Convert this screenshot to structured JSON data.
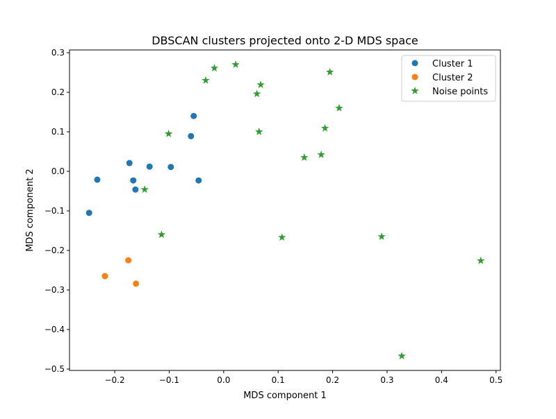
{
  "chart_data": {
    "type": "scatter",
    "title": "DBSCAN clusters projected onto 2-D MDS space",
    "xlabel": "MDS component 1",
    "ylabel": "MDS component 2",
    "xlim": [
      -0.283,
      0.508
    ],
    "ylim": [
      -0.5035,
      0.307
    ],
    "xticks": [
      -0.2,
      -0.1,
      0.0,
      0.1,
      0.2,
      0.3,
      0.4,
      0.5
    ],
    "xtick_labels": [
      "−0.2",
      "−0.1",
      "0.0",
      "0.1",
      "0.2",
      "0.3",
      "0.4",
      "0.5"
    ],
    "yticks": [
      -0.5,
      -0.4,
      -0.3,
      -0.2,
      -0.1,
      0.0,
      0.1,
      0.2,
      0.3
    ],
    "ytick_labels": [
      "−0.5",
      "−0.4",
      "−0.3",
      "−0.2",
      "−0.1",
      "0.0",
      "0.1",
      "0.2",
      "0.3"
    ],
    "grid": false,
    "legend_position": "top-right",
    "series": [
      {
        "name": "Cluster 1",
        "marker": "circle",
        "color": "#1f77b4",
        "points": [
          [
            -0.247,
            -0.105
          ],
          [
            -0.232,
            -0.021
          ],
          [
            -0.173,
            0.021
          ],
          [
            -0.166,
            -0.023
          ],
          [
            -0.162,
            -0.046
          ],
          [
            -0.136,
            0.012
          ],
          [
            -0.097,
            0.011
          ],
          [
            -0.06,
            0.089
          ],
          [
            -0.055,
            0.14
          ],
          [
            -0.046,
            -0.023
          ]
        ]
      },
      {
        "name": "Cluster 2",
        "marker": "circle",
        "color": "#ff7f0e",
        "points": [
          [
            -0.218,
            -0.265
          ],
          [
            -0.175,
            -0.225
          ],
          [
            -0.161,
            -0.284
          ]
        ]
      },
      {
        "name": "Noise points",
        "marker": "star",
        "color": "#2ca02c",
        "points": [
          [
            -0.145,
            -0.046
          ],
          [
            -0.114,
            -0.16
          ],
          [
            -0.101,
            0.095
          ],
          [
            -0.033,
            0.23
          ],
          [
            -0.017,
            0.261
          ],
          [
            0.022,
            0.27
          ],
          [
            0.061,
            0.196
          ],
          [
            0.068,
            0.219
          ],
          [
            0.065,
            0.1
          ],
          [
            0.107,
            -0.167
          ],
          [
            0.148,
            0.035
          ],
          [
            0.179,
            0.042
          ],
          [
            0.186,
            0.109
          ],
          [
            0.195,
            0.251
          ],
          [
            0.212,
            0.16
          ],
          [
            0.29,
            -0.165
          ],
          [
            0.327,
            -0.467
          ],
          [
            0.472,
            -0.226
          ]
        ]
      }
    ]
  }
}
